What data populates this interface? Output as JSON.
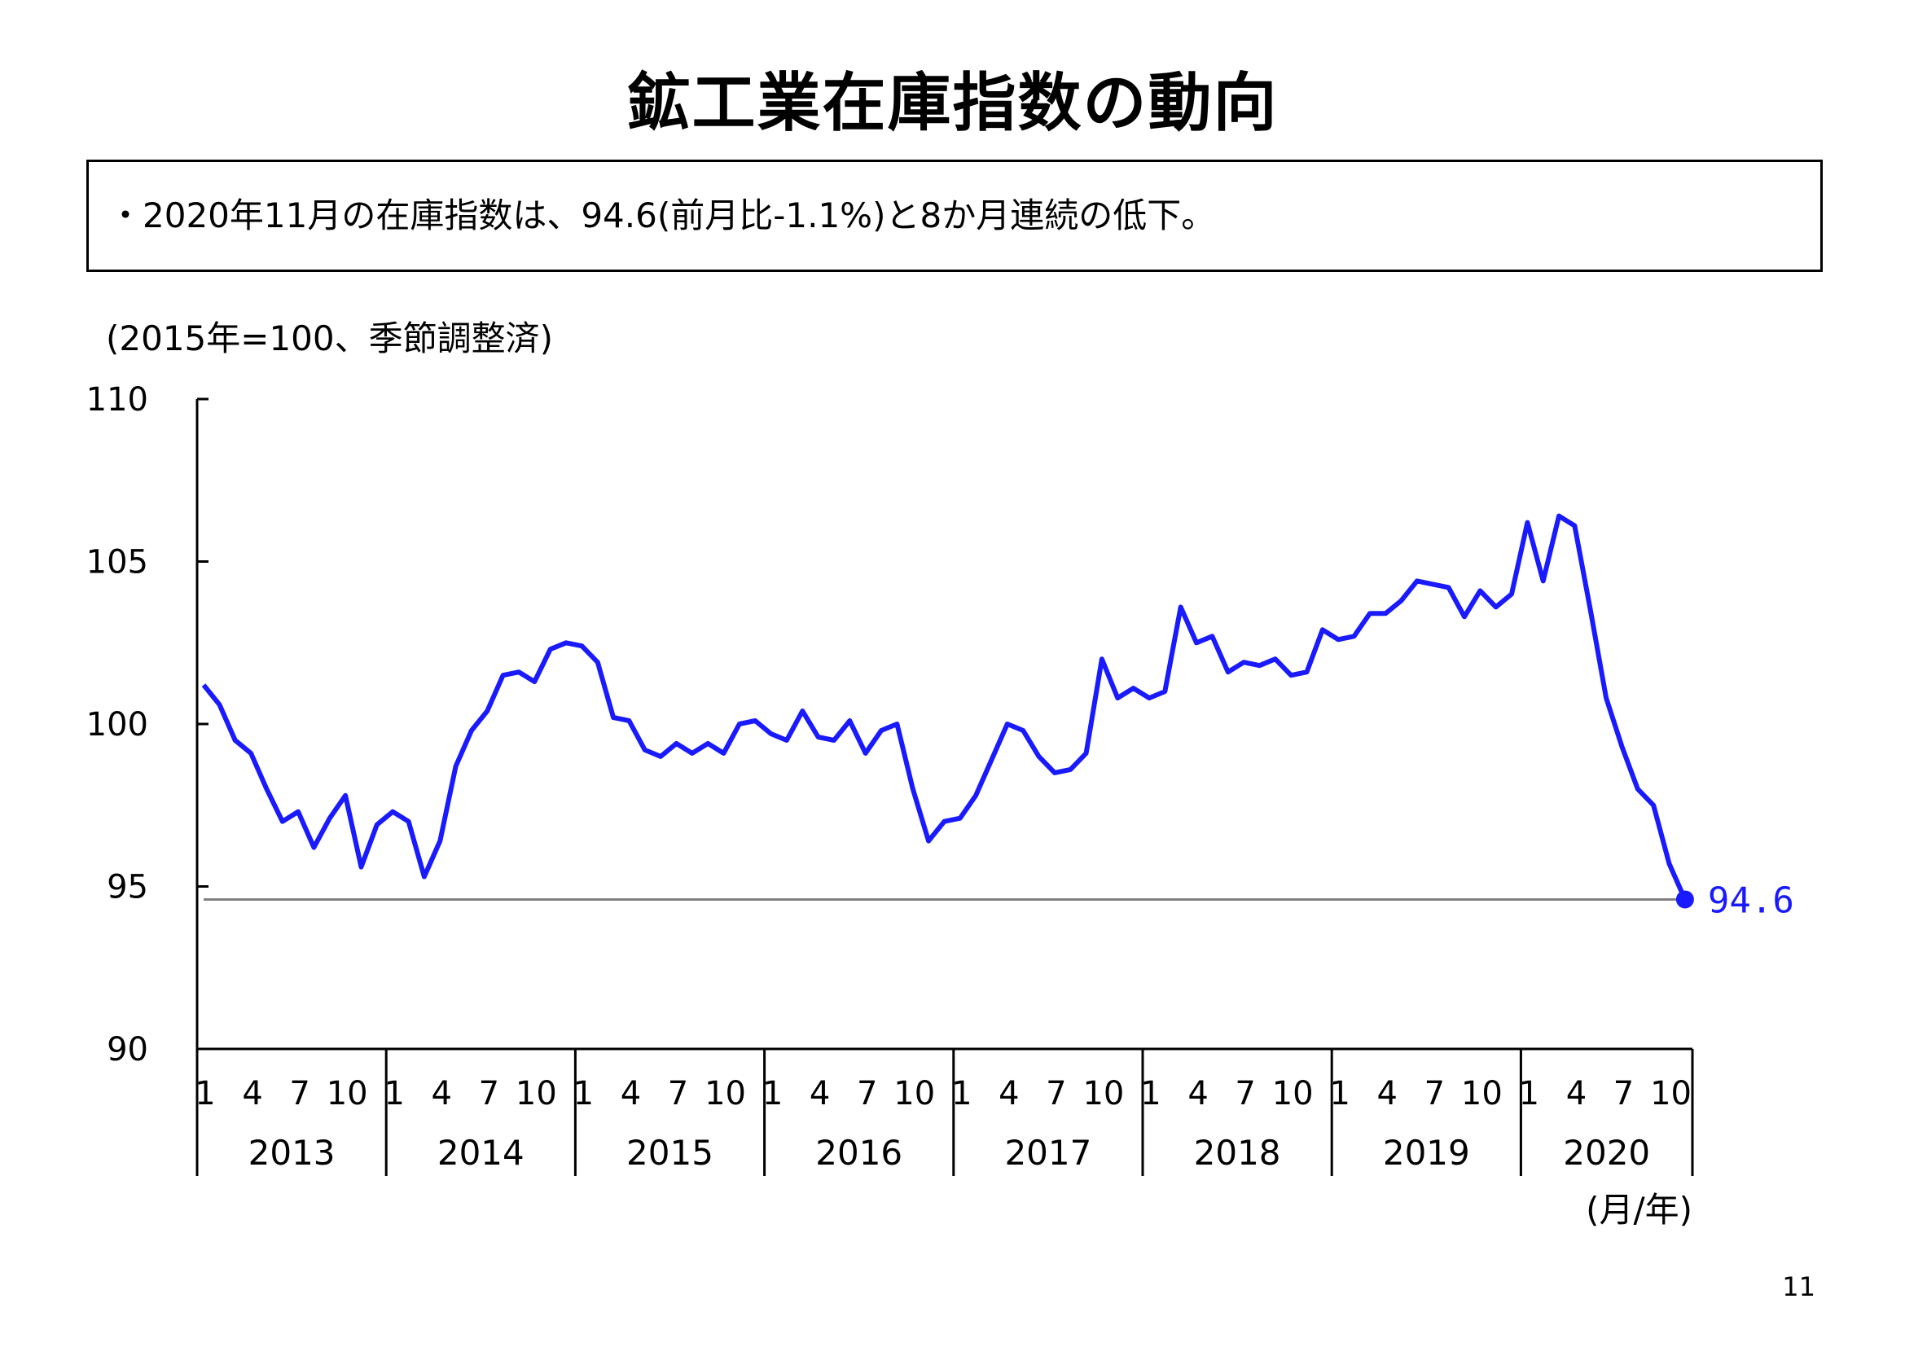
{
  "title": "鉱工業在庫指数の動向",
  "summary": "・2020年11月の在庫指数は、94.6(前月比-1.1%)と8か月連続の低下。",
  "unit_note": "(2015年=100、季節調整済)",
  "x_unit_label": "(月/年)",
  "page_number": "11",
  "colors": {
    "line": "#1a1aff",
    "reference_line": "#808080",
    "axis": "#000000"
  },
  "chart_data": {
    "type": "line",
    "ylim": [
      90,
      110
    ],
    "yticks": [
      "110",
      "105",
      "100",
      "95",
      "90"
    ],
    "years": [
      "2013",
      "2014",
      "2015",
      "2016",
      "2017",
      "2018",
      "2019",
      "2020"
    ],
    "month_ticks": [
      "1",
      "4",
      "7",
      "10"
    ],
    "reference_value": 94.6,
    "last_value_label": "94.6",
    "x": [
      "2013-01",
      "2013-02",
      "2013-03",
      "2013-04",
      "2013-05",
      "2013-06",
      "2013-07",
      "2013-08",
      "2013-09",
      "2013-10",
      "2013-11",
      "2013-12",
      "2014-01",
      "2014-02",
      "2014-03",
      "2014-04",
      "2014-05",
      "2014-06",
      "2014-07",
      "2014-08",
      "2014-09",
      "2014-10",
      "2014-11",
      "2014-12",
      "2015-01",
      "2015-02",
      "2015-03",
      "2015-04",
      "2015-05",
      "2015-06",
      "2015-07",
      "2015-08",
      "2015-09",
      "2015-10",
      "2015-11",
      "2015-12",
      "2016-01",
      "2016-02",
      "2016-03",
      "2016-04",
      "2016-05",
      "2016-06",
      "2016-07",
      "2016-08",
      "2016-09",
      "2016-10",
      "2016-11",
      "2016-12",
      "2017-01",
      "2017-02",
      "2017-03",
      "2017-04",
      "2017-05",
      "2017-06",
      "2017-07",
      "2017-08",
      "2017-09",
      "2017-10",
      "2017-11",
      "2017-12",
      "2018-01",
      "2018-02",
      "2018-03",
      "2018-04",
      "2018-05",
      "2018-06",
      "2018-07",
      "2018-08",
      "2018-09",
      "2018-10",
      "2018-11",
      "2018-12",
      "2019-01",
      "2019-02",
      "2019-03",
      "2019-04",
      "2019-05",
      "2019-06",
      "2019-07",
      "2019-08",
      "2019-09",
      "2019-10",
      "2019-11",
      "2019-12",
      "2020-01",
      "2020-02",
      "2020-03",
      "2020-04",
      "2020-05",
      "2020-06",
      "2020-07",
      "2020-08",
      "2020-09",
      "2020-10",
      "2020-11"
    ],
    "values": [
      101.2,
      100.6,
      99.5,
      99.1,
      98.0,
      97.0,
      97.3,
      96.2,
      97.1,
      97.8,
      95.6,
      96.9,
      97.3,
      97.0,
      95.3,
      96.4,
      98.7,
      99.8,
      100.4,
      101.5,
      101.6,
      101.3,
      102.3,
      102.5,
      102.4,
      101.9,
      100.2,
      100.1,
      99.2,
      99.0,
      99.4,
      99.1,
      99.4,
      99.1,
      100.0,
      100.1,
      99.7,
      99.5,
      100.4,
      99.6,
      99.5,
      100.1,
      99.1,
      99.8,
      100.0,
      98.0,
      96.4,
      97.0,
      97.1,
      97.8,
      98.9,
      100.0,
      99.8,
      99.0,
      98.5,
      98.6,
      99.1,
      102.0,
      100.8,
      101.1,
      100.8,
      101.0,
      103.6,
      102.5,
      102.7,
      101.6,
      101.9,
      101.8,
      102.0,
      101.5,
      101.6,
      102.9,
      102.6,
      102.7,
      103.4,
      103.4,
      103.8,
      104.4,
      104.3,
      104.2,
      103.3,
      104.1,
      103.6,
      104.0,
      106.2,
      104.4,
      106.4,
      106.1,
      103.5,
      100.8,
      99.3,
      98.0,
      97.5,
      95.7,
      94.6
    ]
  }
}
